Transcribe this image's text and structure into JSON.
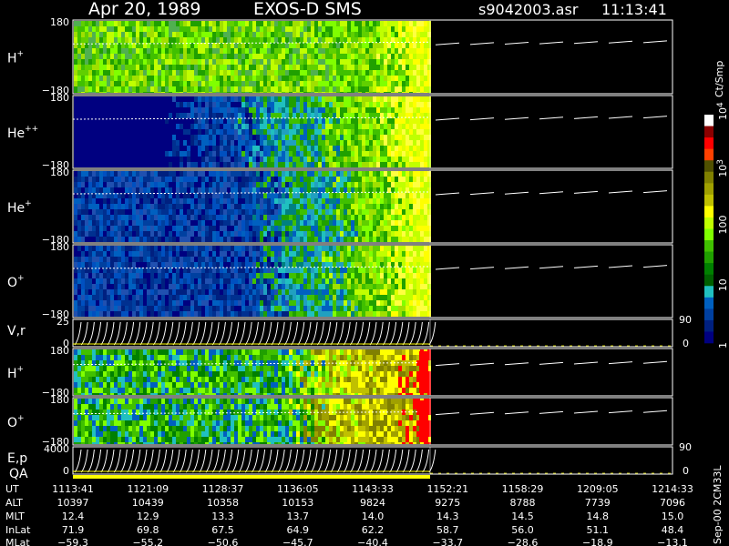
{
  "header": {
    "date": "Apr 20, 1989",
    "instrument": "EXOS-D SMS",
    "file": "s9042003.asr",
    "time": "11:13:41"
  },
  "colorbar": {
    "unit": "Ct/Smp",
    "labels": [
      {
        "text": "10",
        "sup": "4",
        "pos": 0.0
      },
      {
        "text": "10",
        "sup": "3",
        "pos": 0.25
      },
      {
        "text": "100",
        "sup": "",
        "pos": 0.5
      },
      {
        "text": "10",
        "sup": "",
        "pos": 0.75
      },
      {
        "text": "1",
        "sup": "",
        "pos": 1.0
      }
    ],
    "colors": [
      "#ffffff",
      "#8b0000",
      "#ff0000",
      "#ff4000",
      "#505000",
      "#808000",
      "#a0a000",
      "#c0c000",
      "#ffff00",
      "#c0ff00",
      "#80ff00",
      "#40c000",
      "#20a000",
      "#008000",
      "#006000",
      "#20c0c0",
      "#0060c0",
      "#0040a0",
      "#002080",
      "#000080"
    ]
  },
  "stamp": "Sep-00 2CM33L",
  "chart_data": {
    "type": "heatmap",
    "panels": [
      {
        "id": "h-plus",
        "label": "H",
        "sup": "+",
        "ymax": "180",
        "ymin": "−180",
        "style": "green",
        "fill": 0.985
      },
      {
        "id": "he-plus-plus",
        "label": "He",
        "sup": "++",
        "ymax": "180",
        "ymin": "−180",
        "style": "hepp",
        "fill": 0.985
      },
      {
        "id": "he-plus",
        "label": "He",
        "sup": "+",
        "ymax": "180",
        "ymin": "−180",
        "style": "blue",
        "fill": 0.985
      },
      {
        "id": "o-plus",
        "label": "O",
        "sup": "+",
        "ymax": "180",
        "ymin": "−180",
        "style": "blue",
        "fill": 0.985
      },
      {
        "id": "vr",
        "label": "V,r",
        "sup": "",
        "ymax": "25",
        "ymin": "0",
        "style": "vr",
        "right_top": "90",
        "right_bottom": "0"
      },
      {
        "id": "h-plus-2",
        "label": "H",
        "sup": "+",
        "ymax": "180",
        "ymin": "−180",
        "style": "hot",
        "fill": 0.99
      },
      {
        "id": "o-plus-2",
        "label": "O",
        "sup": "+",
        "ymax": "180",
        "ymin": "−180",
        "style": "hot",
        "fill": 0.99
      },
      {
        "id": "ep",
        "label": "E,p",
        "sup": "",
        "ymax": "4000",
        "ymin": "0",
        "style": "vr",
        "right_top": "90",
        "right_bottom": "0"
      }
    ],
    "qa_label": "QA",
    "data_end_fraction": 0.595,
    "ephemeris": {
      "labels": [
        "UT",
        "ALT",
        "MLT",
        "InLat",
        "MLat"
      ],
      "columns": [
        [
          "1113:41",
          "10397",
          "12.4",
          "71.9",
          "−59.3"
        ],
        [
          "1121:09",
          "10439",
          "12.9",
          "69.8",
          "−55.2"
        ],
        [
          "1128:37",
          "10358",
          "13.3",
          "67.5",
          "−50.6"
        ],
        [
          "1136:05",
          "10153",
          "13.7",
          "64.9",
          "−45.7"
        ],
        [
          "1143:33",
          "9824",
          "14.0",
          "62.2",
          "−40.4"
        ],
        [
          "1152:21",
          "9275",
          "14.3",
          "58.7",
          "−33.7"
        ],
        [
          "1158:29",
          "8788",
          "14.5",
          "56.0",
          "−28.6"
        ],
        [
          "1209:05",
          "7739",
          "14.8",
          "51.1",
          "−18.9"
        ],
        [
          "1214:33",
          "7096",
          "15.0",
          "48.4",
          "−13.1"
        ]
      ]
    }
  }
}
